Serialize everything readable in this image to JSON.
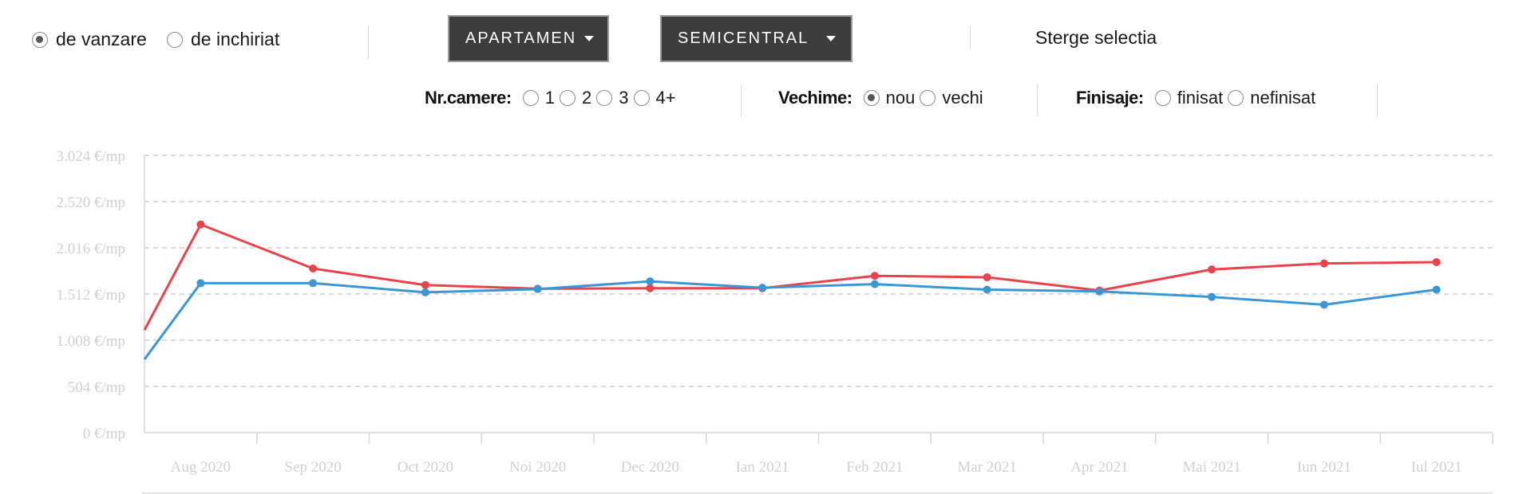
{
  "filters": {
    "transaction": {
      "options": [
        {
          "label": "de vanzare",
          "checked": true
        },
        {
          "label": "de inchiriat",
          "checked": false
        }
      ]
    },
    "property_type": {
      "label": "APARTAMEN"
    },
    "zone": {
      "label": "SEMICENTRAL"
    },
    "clear": {
      "label": "Sterge selectia"
    },
    "rooms": {
      "label": "Nr.camere:",
      "options": [
        {
          "label": "1",
          "checked": false
        },
        {
          "label": "2",
          "checked": false
        },
        {
          "label": "3",
          "checked": false
        },
        {
          "label": "4+",
          "checked": false
        }
      ]
    },
    "age": {
      "label": "Vechime:",
      "options": [
        {
          "label": "nou",
          "checked": true
        },
        {
          "label": "vechi",
          "checked": false
        }
      ]
    },
    "finish": {
      "label": "Finisaje:",
      "options": [
        {
          "label": "finisat",
          "checked": false
        },
        {
          "label": "nefinisat",
          "checked": false
        }
      ]
    }
  },
  "chart_data": {
    "type": "line",
    "categories": [
      "Aug 2020",
      "Sep 2020",
      "Oct 2020",
      "Noi 2020",
      "Dec 2020",
      "Ian 2021",
      "Feb 2021",
      "Mar 2021",
      "Apr 2021",
      "Mai 2021",
      "Iun 2021",
      "Iul 2021"
    ],
    "y_ticks": [
      "0 €/mp",
      "504 €/mp",
      "1.008 €/mp",
      "1.512 €/mp",
      "2.016 €/mp",
      "2.520 €/mp",
      "3.024 €/mp"
    ],
    "ylim": [
      0,
      3024
    ],
    "grid": true,
    "series": [
      {
        "color": "#e8424a",
        "start": 1120,
        "values": [
          2270,
          1790,
          1610,
          1570,
          1575,
          1575,
          1710,
          1695,
          1550,
          1780,
          1845,
          1860
        ]
      },
      {
        "color": "#3a97d4",
        "start": 800,
        "values": [
          1630,
          1630,
          1530,
          1565,
          1650,
          1580,
          1620,
          1560,
          1540,
          1480,
          1395,
          1560
        ]
      }
    ]
  }
}
